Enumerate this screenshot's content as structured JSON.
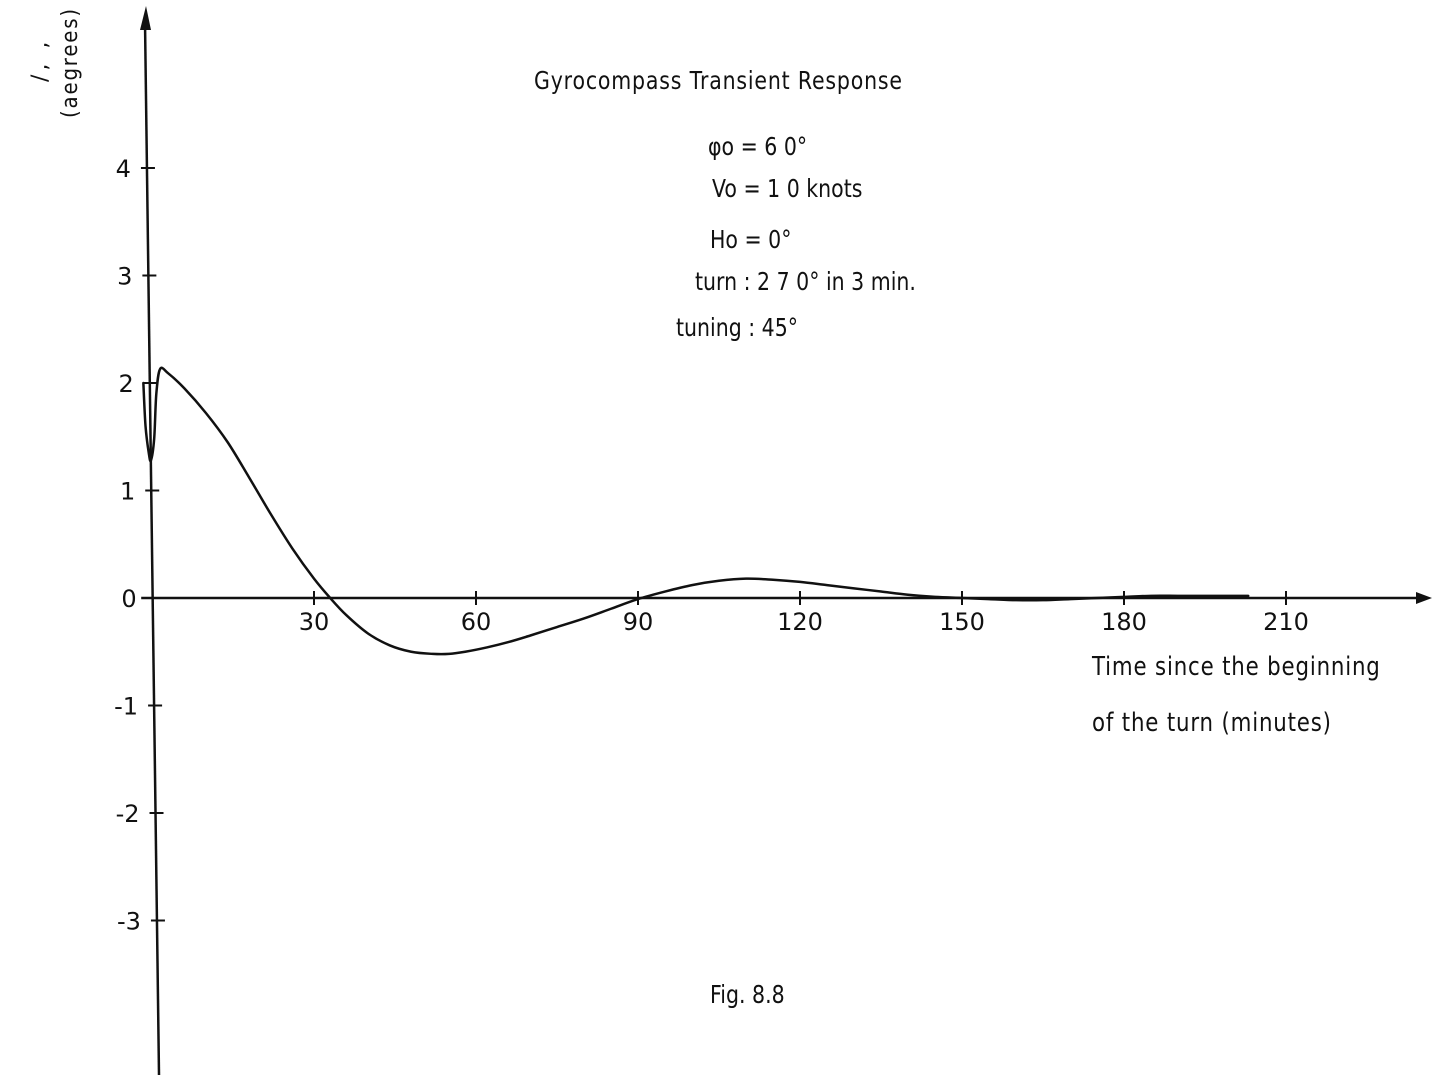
{
  "chart_data": {
    "type": "line",
    "title": "Gyrocompass Transient Response",
    "xlabel_line1": "Time since the beginning",
    "xlabel_line2": "of the turn (minutes)",
    "ylabel": "(aegrees)",
    "ylabel_fragment": "/, ,",
    "parameters": {
      "phi": "φo = 6 0°",
      "v": "Vo = 1 0 knots",
      "h": "Ho = 0°",
      "turn": "turn : 2 7 0° in 3 min.",
      "tuning": "tuning : 45°"
    },
    "figure_label": "Fig. 8.8",
    "xlim": [
      0,
      230
    ],
    "ylim": [
      -4.4,
      5.4
    ],
    "x_ticks": [
      30,
      60,
      90,
      120,
      150,
      180,
      210
    ],
    "x_tick_labels": [
      "30",
      "60",
      "90",
      "120",
      "150",
      "180",
      "210"
    ],
    "y_ticks": [
      4,
      3,
      2,
      1,
      0,
      -1,
      -2,
      -3
    ],
    "y_tick_labels": [
      "4",
      "3",
      "2",
      "1",
      "0",
      "-1",
      "-2",
      "-3"
    ],
    "grid": false,
    "series": [
      {
        "x": [
          -1.6,
          -1.2,
          -0.6,
          -0.2,
          0.4,
          0.8,
          1.5,
          3,
          6,
          10,
          14,
          18,
          22,
          26,
          30,
          33,
          36,
          40,
          44,
          48,
          52,
          55,
          58,
          62,
          66,
          70,
          75,
          80,
          85,
          90,
          95,
          100,
          105,
          110,
          115,
          120,
          125,
          130,
          135,
          140,
          145,
          150,
          155,
          160,
          165,
          170,
          175,
          180,
          185,
          190,
          195,
          200,
          203
        ],
        "y": [
          2.0,
          1.6,
          1.35,
          1.28,
          1.48,
          1.9,
          2.13,
          2.09,
          1.95,
          1.72,
          1.45,
          1.12,
          0.78,
          0.46,
          0.18,
          0.0,
          -0.16,
          -0.33,
          -0.44,
          -0.5,
          -0.52,
          -0.52,
          -0.5,
          -0.46,
          -0.41,
          -0.35,
          -0.27,
          -0.19,
          -0.1,
          -0.01,
          0.06,
          0.12,
          0.16,
          0.18,
          0.17,
          0.15,
          0.12,
          0.09,
          0.06,
          0.03,
          0.01,
          0.0,
          -0.01,
          -0.02,
          -0.02,
          -0.01,
          0.0,
          0.01,
          0.02,
          0.02,
          0.02,
          0.02,
          0.02
        ]
      }
    ]
  }
}
